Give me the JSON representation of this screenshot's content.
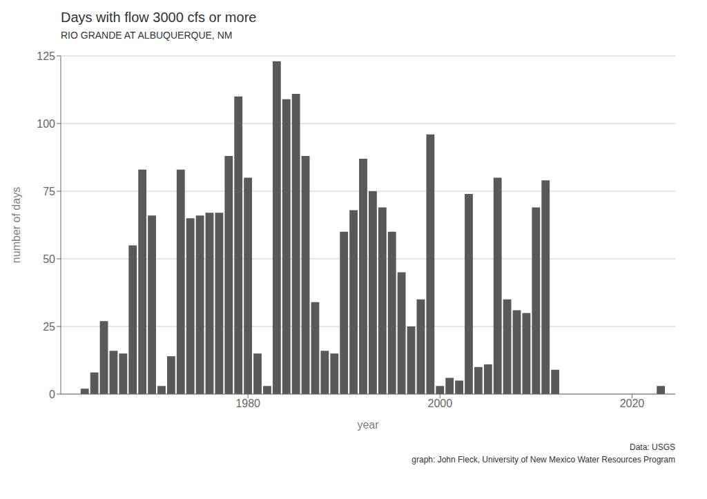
{
  "chart_data": {
    "type": "bar",
    "title": "Days with flow 3000 cfs or more",
    "subtitle": "RIO GRANDE AT ALBUQUERQUE, NM",
    "xlabel": "year",
    "ylabel": "number of days",
    "annotations": [
      "Data: USGS",
      "graph: John Fleck, University of New Mexico Water Resources Program"
    ],
    "x": [
      1963,
      1964,
      1965,
      1966,
      1967,
      1968,
      1969,
      1970,
      1971,
      1972,
      1973,
      1974,
      1975,
      1976,
      1977,
      1978,
      1979,
      1980,
      1981,
      1982,
      1983,
      1984,
      1985,
      1986,
      1987,
      1988,
      1989,
      1990,
      1991,
      1992,
      1993,
      1994,
      1995,
      1996,
      1997,
      1998,
      1999,
      2000,
      2001,
      2002,
      2003,
      2004,
      2005,
      2006,
      2007,
      2008,
      2009,
      2010,
      2011,
      2012,
      2013,
      2014,
      2015,
      2016,
      2017,
      2018,
      2019,
      2020,
      2021,
      2022,
      2023
    ],
    "values": [
      2,
      8,
      27,
      16,
      15,
      55,
      83,
      66,
      3,
      14,
      83,
      65,
      66,
      67,
      67,
      88,
      110,
      80,
      15,
      3,
      123,
      109,
      111,
      88,
      34,
      16,
      15,
      60,
      68,
      87,
      75,
      69,
      60,
      45,
      25,
      35,
      96,
      3,
      6,
      5,
      74,
      10,
      11,
      80,
      35,
      31,
      30,
      69,
      79,
      9,
      0,
      0,
      0,
      0,
      0,
      0,
      0,
      0,
      0,
      0,
      3
    ],
    "color": "#595959",
    "xlim": [
      1960.5,
      2024.5
    ],
    "ylim": [
      0,
      125
    ],
    "xticks": [
      1980,
      2000,
      2020
    ],
    "yticks": [
      0,
      25,
      50,
      75,
      100,
      125
    ],
    "grid": true
  }
}
